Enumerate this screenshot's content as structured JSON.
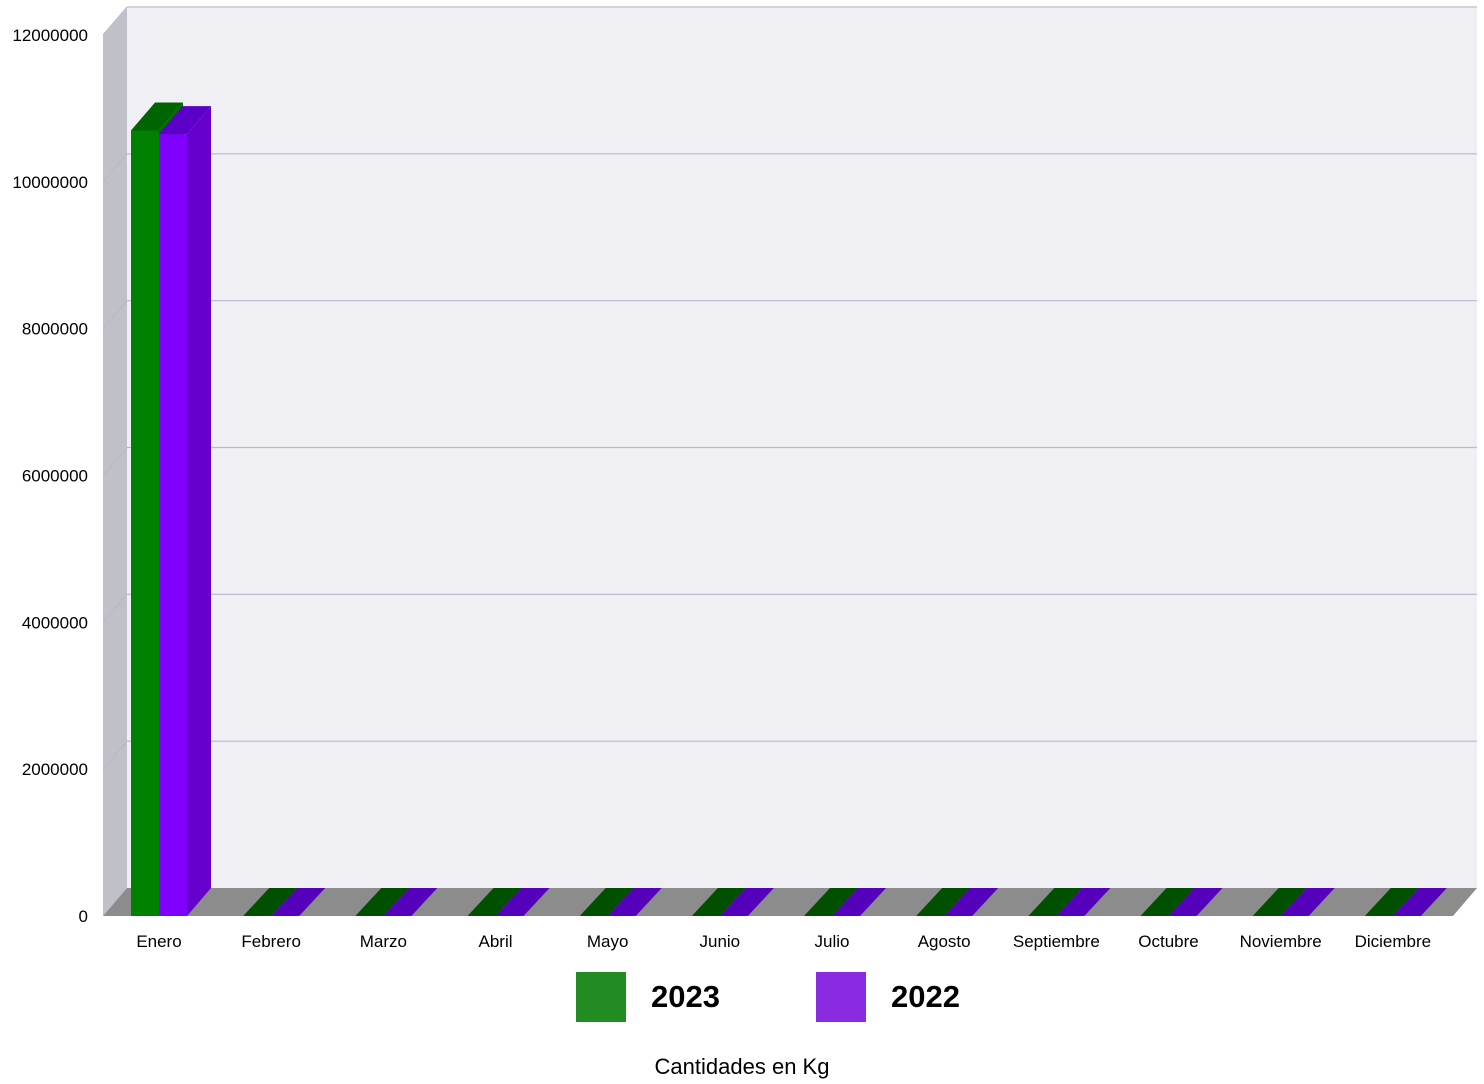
{
  "chart_data": {
    "type": "bar",
    "categories": [
      "Enero",
      "Febrero",
      "Marzo",
      "Abril",
      "Mayo",
      "Junio",
      "Julio",
      "Agosto",
      "Septiembre",
      "Octubre",
      "Noviembre",
      "Diciembre"
    ],
    "series": [
      {
        "name": "2023",
        "color": "#008000",
        "values": [
          10700000,
          0,
          0,
          0,
          0,
          0,
          0,
          0,
          0,
          0,
          0,
          0
        ]
      },
      {
        "name": "2022",
        "color": "#8000FF",
        "values": [
          10650000,
          0,
          0,
          0,
          0,
          0,
          0,
          0,
          0,
          0,
          0,
          0
        ]
      }
    ],
    "y_ticks": [
      "0",
      "2000000",
      "4000000",
      "6000000",
      "8000000",
      "10000000",
      "12000000"
    ],
    "ylim": [
      0,
      12000000
    ],
    "xlabel": "Cantidades en Kg",
    "grid": true,
    "legend_position": "bottom",
    "style": "3d"
  }
}
